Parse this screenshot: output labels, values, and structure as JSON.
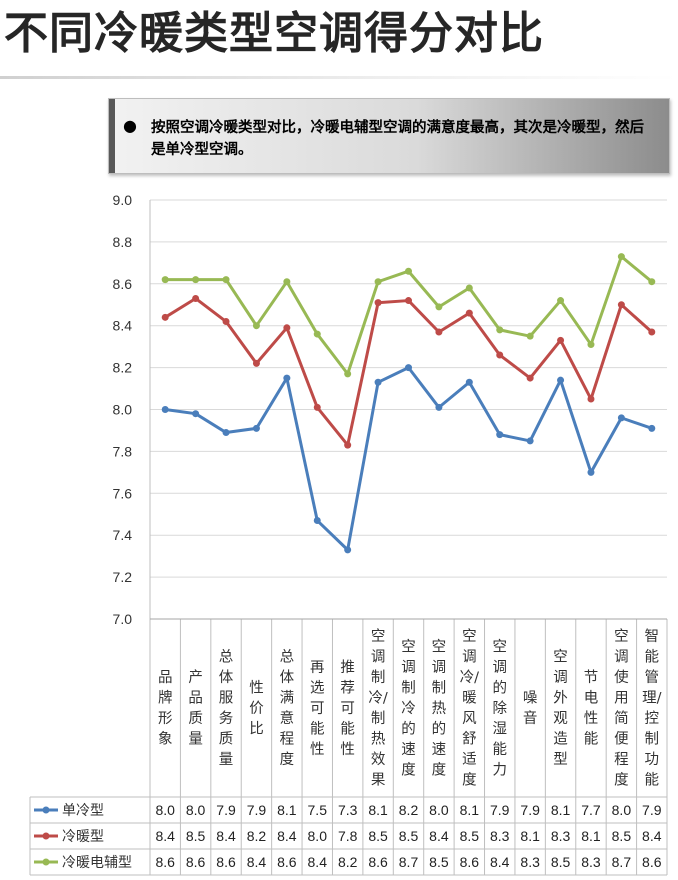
{
  "page": {
    "title": "不同冷暖类型空调得分对比",
    "callout_bullet": "●",
    "callout_text": "按照空调冷暖类型对比，冷暖电辅型空调的满意度最高，其次是冷暖型，然后是单冷型空调。"
  },
  "chart_data": {
    "type": "line",
    "title": "",
    "xlabel": "",
    "ylabel": "",
    "ylim": [
      7.0,
      9.0
    ],
    "yticks": [
      "7.0",
      "7.2",
      "7.4",
      "7.6",
      "7.8",
      "8.0",
      "8.2",
      "8.4",
      "8.6",
      "8.8",
      "9.0"
    ],
    "grid": true,
    "legend": "table-left",
    "categories": [
      "品牌形象",
      "产品质量",
      "总体服务质量",
      "性价比",
      "总体满意程度",
      "再选可能性",
      "推荐可能性",
      "空调制冷/制热效果",
      "空调制冷的速度",
      "空调制热的速度",
      "空调冷/暖风舒适度",
      "空调的除湿能力",
      "噪音",
      "空调外观造型",
      "节电性能",
      "空调使用简便程度",
      "智能管理/控制功能"
    ],
    "category_lines": [
      [
        "品",
        "牌",
        "形",
        "象"
      ],
      [
        "产",
        "品",
        "质",
        "量"
      ],
      [
        "总",
        "体",
        "服",
        "务",
        "质",
        "量"
      ],
      [
        "性",
        "价",
        "比"
      ],
      [
        "总",
        "体",
        "满",
        "意",
        "程",
        "度"
      ],
      [
        "再",
        "选",
        "可",
        "能",
        "性"
      ],
      [
        "推",
        "荐",
        "可",
        "能",
        "性"
      ],
      [
        "空",
        "调",
        "制",
        "冷/",
        "制",
        "热",
        "效",
        "果"
      ],
      [
        "空",
        "调",
        "制",
        "冷",
        "的",
        "速",
        "度"
      ],
      [
        "空",
        "调",
        "制",
        "热",
        "的",
        "速",
        "度"
      ],
      [
        "空",
        "调",
        "冷/",
        "暖",
        "风",
        "舒",
        "适",
        "度"
      ],
      [
        "空",
        "调",
        "的",
        "除",
        "湿",
        "能",
        "力"
      ],
      [
        "噪",
        "音"
      ],
      [
        "空",
        "调",
        "外",
        "观",
        "造",
        "型"
      ],
      [
        "节",
        "电",
        "性",
        "能"
      ],
      [
        "空",
        "调",
        "使",
        "用",
        "简",
        "便",
        "程",
        "度"
      ],
      [
        "智",
        "能",
        "管",
        "理/",
        "控",
        "制",
        "功",
        "能"
      ]
    ],
    "series": [
      {
        "name": "单冷型",
        "color": "#4a7ebb",
        "values": [
          8.0,
          7.98,
          7.89,
          7.91,
          8.15,
          7.47,
          7.33,
          8.13,
          8.2,
          8.01,
          8.13,
          7.88,
          7.85,
          8.14,
          7.7,
          7.96,
          7.91
        ],
        "table": [
          "8.0",
          "8.0",
          "7.9",
          "7.9",
          "8.1",
          "7.5",
          "7.3",
          "8.1",
          "8.2",
          "8.0",
          "8.1",
          "7.9",
          "7.9",
          "8.1",
          "7.7",
          "8.0",
          "7.9"
        ]
      },
      {
        "name": "冷暖型",
        "color": "#be4b48",
        "values": [
          8.44,
          8.53,
          8.42,
          8.22,
          8.39,
          8.01,
          7.83,
          8.51,
          8.52,
          8.37,
          8.46,
          8.26,
          8.15,
          8.33,
          8.05,
          8.5,
          8.37
        ],
        "table": [
          "8.4",
          "8.5",
          "8.4",
          "8.2",
          "8.4",
          "8.0",
          "7.8",
          "8.5",
          "8.5",
          "8.4",
          "8.5",
          "8.3",
          "8.1",
          "8.3",
          "8.1",
          "8.5",
          "8.4"
        ]
      },
      {
        "name": "冷暖电辅型",
        "color": "#98b954",
        "values": [
          8.62,
          8.62,
          8.62,
          8.4,
          8.61,
          8.36,
          8.17,
          8.61,
          8.66,
          8.49,
          8.58,
          8.38,
          8.35,
          8.52,
          8.31,
          8.73,
          8.61
        ],
        "table": [
          "8.6",
          "8.6",
          "8.6",
          "8.4",
          "8.6",
          "8.4",
          "8.2",
          "8.6",
          "8.7",
          "8.5",
          "8.6",
          "8.4",
          "8.3",
          "8.5",
          "8.3",
          "8.7",
          "8.6"
        ]
      }
    ],
    "colors": {
      "grid": "#d9d9d9",
      "axis": "#a6a6a6",
      "frame": "#bfbfbf"
    }
  }
}
